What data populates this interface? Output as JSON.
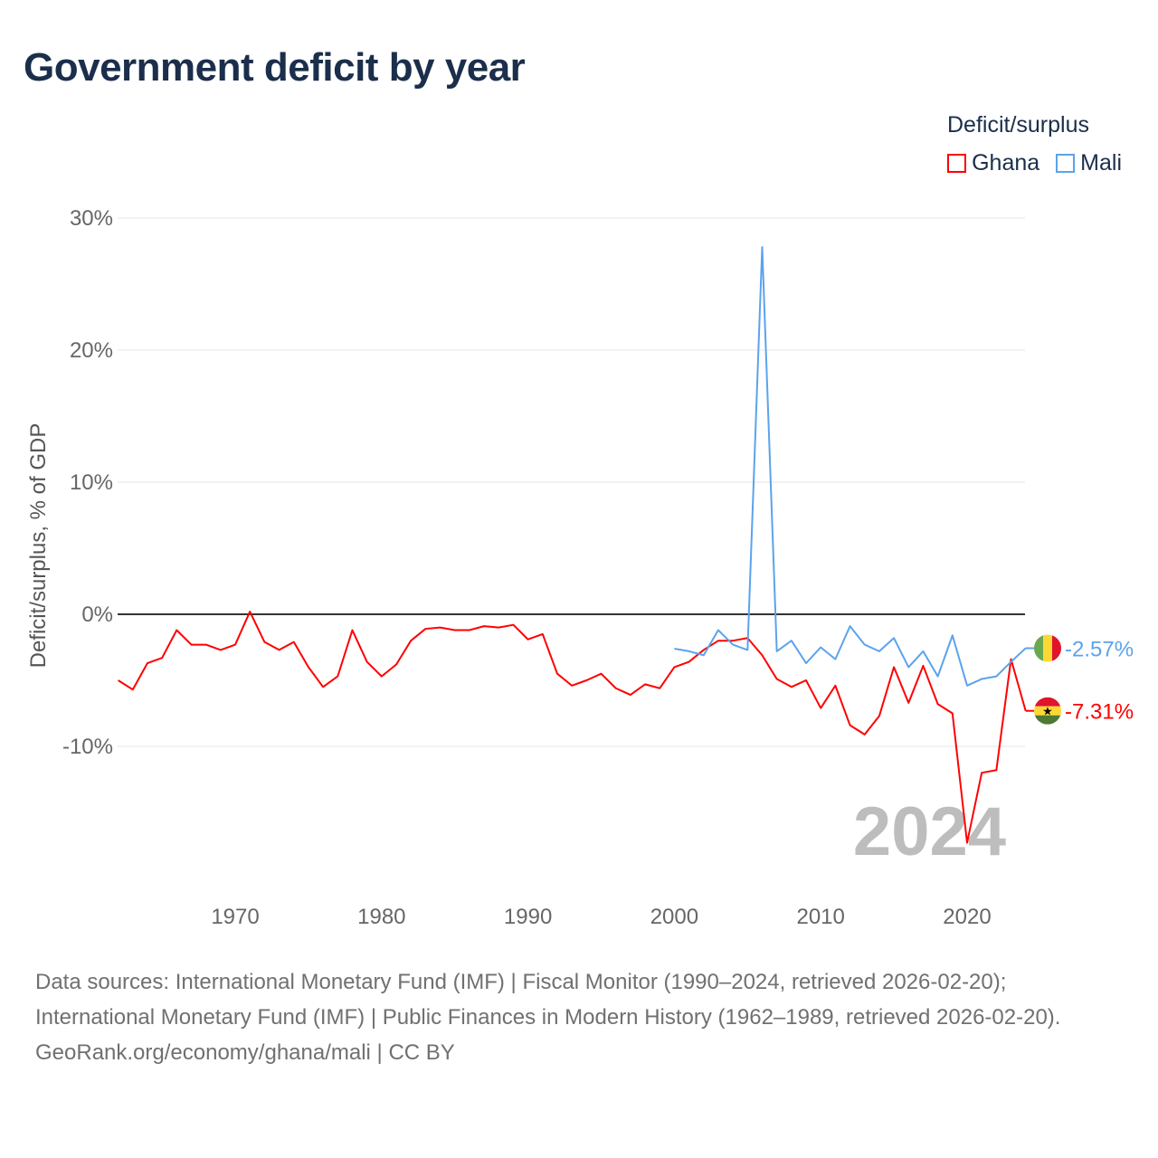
{
  "title": "Government deficit by year",
  "legend": {
    "title": "Deficit/surplus",
    "items": [
      {
        "name": "Ghana",
        "color": "#ff0000"
      },
      {
        "name": "Mali",
        "color": "#5ba3ec"
      }
    ]
  },
  "footer": {
    "sources": "Data sources: International Monetary Fund (IMF) | Fiscal Monitor (1990–2024, retrieved 2026-02-20); International Monetary Fund (IMF) | Public Finances in Modern History (1962–1989, retrieved 2026-02-20).",
    "credit": "GeoRank.org/economy/ghana/mali | CC BY"
  },
  "chart_data": {
    "type": "line",
    "title": "Government deficit by year",
    "ylabel": "Deficit/surplus, % of GDP",
    "xlabel": "",
    "xlim": [
      1962,
      2024
    ],
    "ylim": [
      -20,
      30
    ],
    "yticks": [
      -10,
      0,
      10,
      20,
      30
    ],
    "ytick_labels": [
      "-10%",
      "0%",
      "10%",
      "20%",
      "30%"
    ],
    "xticks": [
      1970,
      1980,
      1990,
      2000,
      2010,
      2020
    ],
    "xtick_labels": [
      "1970",
      "1980",
      "1990",
      "2000",
      "2010",
      "2020"
    ],
    "grid": true,
    "watermark_year": "2024",
    "series": [
      {
        "name": "Ghana",
        "color": "#ff0000",
        "end_label": "-7.31%",
        "start_year": 1962,
        "values": [
          -5.0,
          -5.7,
          -3.7,
          -3.3,
          -1.2,
          -2.3,
          -2.3,
          -2.7,
          -2.3,
          0.2,
          -2.1,
          -2.7,
          -2.1,
          -4.0,
          -5.5,
          -4.7,
          -1.2,
          -3.6,
          -4.7,
          -3.8,
          -2.0,
          -1.1,
          -1.0,
          -1.2,
          -1.2,
          -0.9,
          -1.0,
          -0.8,
          -1.9,
          -1.5,
          -4.5,
          -5.4,
          -5.0,
          -4.5,
          -5.6,
          -6.1,
          -5.3,
          -5.6,
          -4.0,
          -3.6,
          -2.7,
          -2.0,
          -2.0,
          -1.8,
          -3.1,
          -4.9,
          -5.5,
          -5.0,
          -7.1,
          -5.4,
          -8.4,
          -9.1,
          -7.7,
          -4.0,
          -6.7,
          -3.9,
          -6.8,
          -7.5,
          -17.3,
          -12.0,
          -11.8,
          -3.4,
          -7.31
        ]
      },
      {
        "name": "Mali",
        "color": "#5ba3ec",
        "end_label": "-2.57%",
        "start_year": 2000,
        "values": [
          -2.6,
          -2.8,
          -3.1,
          -1.2,
          -2.3,
          -2.7,
          27.8,
          -2.8,
          -2.0,
          -3.7,
          -2.5,
          -3.4,
          -0.9,
          -2.3,
          -2.8,
          -1.8,
          -4.0,
          -2.8,
          -4.7,
          -1.6,
          -5.4,
          -4.9,
          -4.7,
          -3.6,
          -2.57
        ]
      }
    ]
  }
}
